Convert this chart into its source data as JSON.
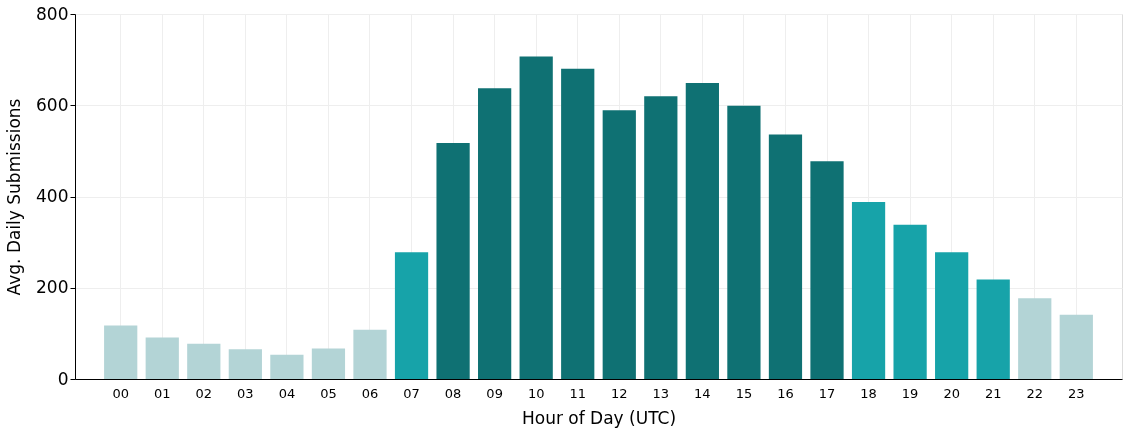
{
  "chart_data": {
    "type": "bar",
    "xlabel": "Hour of Day (UTC)",
    "ylabel": "Avg. Daily Submissions",
    "categories": [
      "00",
      "01",
      "02",
      "03",
      "04",
      "05",
      "06",
      "07",
      "08",
      "09",
      "10",
      "11",
      "12",
      "13",
      "14",
      "15",
      "16",
      "17",
      "18",
      "19",
      "20",
      "21",
      "22",
      "23"
    ],
    "values": [
      117,
      91,
      77,
      65,
      53,
      67,
      108,
      278,
      517,
      637,
      707,
      680,
      589,
      620,
      649,
      599,
      536,
      477,
      388,
      338,
      278,
      218,
      177,
      141
    ],
    "colors": [
      "#b3d4d6",
      "#b3d4d6",
      "#b3d4d6",
      "#b3d4d6",
      "#b3d4d6",
      "#b3d4d6",
      "#b3d4d6",
      "#17a3a9",
      "#0f7173",
      "#0f7173",
      "#0f7173",
      "#0f7173",
      "#0f7173",
      "#0f7173",
      "#0f7173",
      "#0f7173",
      "#0f7173",
      "#0f7173",
      "#17a3a9",
      "#17a3a9",
      "#17a3a9",
      "#17a3a9",
      "#b3d4d6",
      "#b3d4d6"
    ],
    "ylim": [
      0,
      800
    ],
    "yticks": [
      0,
      200,
      400,
      600,
      800
    ],
    "grid": true
  }
}
